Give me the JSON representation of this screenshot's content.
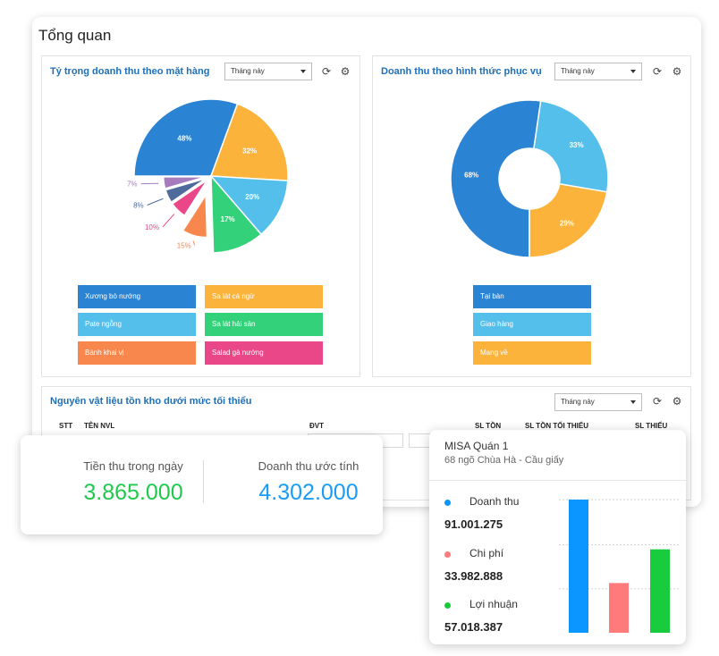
{
  "page": {
    "title": "Tổng quan"
  },
  "panels": {
    "items_share": {
      "title": "Tỷ trọng doanh thu theo mặt hàng",
      "period": "Tháng này",
      "chart_data": {
        "type": "pie",
        "labels": [
          "Xương bò nướng",
          "Sa lát cá ngừ",
          "Pate ngỗng",
          "Sa lát hải sản",
          "Bánh khai vị",
          "Salad gà nướng",
          "",
          ""
        ],
        "values": [
          48,
          32,
          20,
          17,
          15,
          10,
          8,
          7
        ],
        "value_labels": [
          "48%",
          "32%",
          "20%",
          "17%",
          "15%",
          "10%",
          "8%",
          "7%"
        ],
        "colors": [
          "#2a83d3",
          "#fbb33b",
          "#55bfec",
          "#33d17a",
          "#f7874c",
          "#e94787",
          "#4e6b9b",
          "#a67cbc"
        ]
      },
      "legend": [
        {
          "label": "Xương bò nướng",
          "color": "#2a83d3"
        },
        {
          "label": "Sa lát cá ngừ",
          "color": "#fbb33b"
        },
        {
          "label": "Pate ngỗng",
          "color": "#55bfec"
        },
        {
          "label": "Sa lát hải sản",
          "color": "#33d17a"
        },
        {
          "label": "Bánh khai vị",
          "color": "#f7874c"
        },
        {
          "label": "Salad gà nướng",
          "color": "#e94787"
        }
      ]
    },
    "service_share": {
      "title": "Doanh thu theo hình thức phục vụ",
      "period": "Tháng này",
      "chart_data": {
        "type": "pie",
        "labels": [
          "Tại bàn",
          "Giao hàng",
          "Mang về"
        ],
        "values": [
          68,
          33,
          29
        ],
        "value_labels": [
          "68%",
          "33%",
          "29%"
        ],
        "colors": [
          "#2a83d3",
          "#55bfec",
          "#fbb33b"
        ]
      },
      "legend": [
        {
          "label": "Tại bàn",
          "color": "#2a83d3"
        },
        {
          "label": "Giao hàng",
          "color": "#55bfec"
        },
        {
          "label": "Mang về",
          "color": "#fbb33b"
        }
      ]
    },
    "inventory": {
      "title": "Nguyên vật liệu tồn kho dưới mức tối thiểu",
      "period": "Tháng này",
      "columns": [
        "STT",
        "TÊN NVL",
        "ĐVT",
        "SL TỒN",
        "SL TỒN TỐI THIỂU",
        "SL THIẾU"
      ]
    }
  },
  "kpi": {
    "today_label": "Tiền thu trong ngày",
    "today_value": "3.865.000",
    "estimate_label": "Doanh thu ước tính",
    "estimate_value": "4.302.000",
    "today_color": "#1ec94c",
    "estimate_color": "#1a9bf5"
  },
  "store": {
    "name": "MISA Quán 1",
    "address": "68 ngõ Chùa Hà - Cầu giấy",
    "metrics": [
      {
        "label": "Doanh thu",
        "value": "91.001.275",
        "color": "#0a95ff"
      },
      {
        "label": "Chi phí",
        "value": "33.982.888",
        "color": "#ff7a7a"
      },
      {
        "label": "Lợi nhuận",
        "value": "57.018.387",
        "color": "#19cc3e"
      }
    ],
    "chart_data": {
      "type": "bar",
      "categories": [
        "Doanh thu",
        "Chi phí",
        "Lợi nhuận"
      ],
      "values": [
        91001275,
        33982888,
        57018387
      ],
      "colors": [
        "#0a95ff",
        "#ff7a7a",
        "#19cc3e"
      ]
    }
  },
  "icons": {
    "refresh": "refresh-icon",
    "settings": "gear-icon",
    "dropdown": "chevron-down-icon"
  }
}
